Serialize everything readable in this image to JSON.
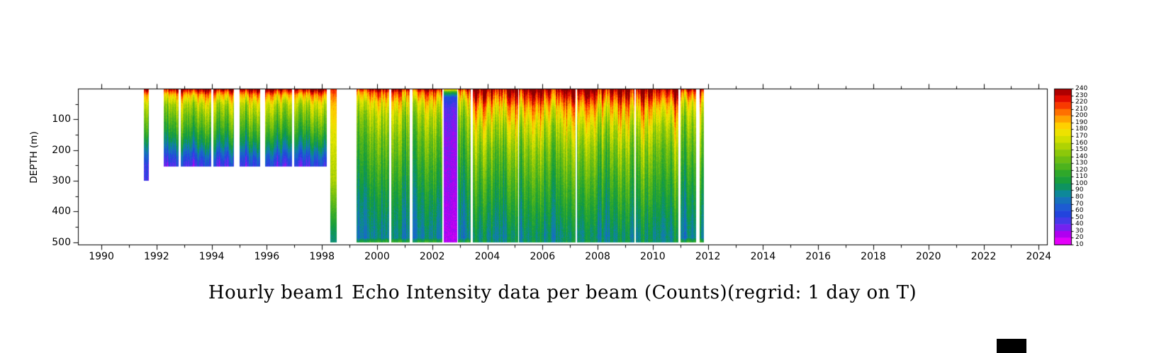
{
  "chart_data": {
    "type": "heatmap",
    "title": "Hourly beam1 Echo Intensity data per beam (Counts)(regrid: 1 day on T)",
    "xlabel": "",
    "ylabel": "DEPTH (m)",
    "xlim": [
      1989.15,
      2024.3
    ],
    "ylim": [
      0,
      508
    ],
    "x_major_ticks": [
      1990,
      1992,
      1994,
      1996,
      1998,
      2000,
      2002,
      2004,
      2006,
      2008,
      2010,
      2012,
      2014,
      2016,
      2018,
      2020,
      2022,
      2024
    ],
    "x_minor_step": 1,
    "y_major_ticks": [
      100,
      200,
      300,
      400,
      500
    ],
    "y_minor_step": 50,
    "grid": false,
    "legend_position": "right-colorbar",
    "colorbar": {
      "min": 10,
      "max": 240,
      "step": 10,
      "tick_labels": [
        240,
        230,
        220,
        210,
        200,
        190,
        180,
        170,
        160,
        150,
        140,
        130,
        120,
        110,
        100,
        90,
        80,
        70,
        60,
        50,
        40,
        30,
        20,
        10
      ]
    },
    "colormap_stops": [
      [
        10,
        "#ff00ff"
      ],
      [
        25,
        "#b000f0"
      ],
      [
        40,
        "#5533ee"
      ],
      [
        55,
        "#2244dd"
      ],
      [
        70,
        "#1a66cc"
      ],
      [
        85,
        "#0d8899"
      ],
      [
        100,
        "#0f9944"
      ],
      [
        115,
        "#2fa82a"
      ],
      [
        130,
        "#5cb817"
      ],
      [
        145,
        "#8cc80a"
      ],
      [
        160,
        "#c0d800"
      ],
      [
        172,
        "#e8e800"
      ],
      [
        185,
        "#ffd000"
      ],
      [
        198,
        "#ff9500"
      ],
      [
        210,
        "#ff5500"
      ],
      [
        222,
        "#ee1100"
      ],
      [
        232,
        "#c40000"
      ],
      [
        240,
        "#8b0000"
      ]
    ],
    "depth_profiles": {
      "early": [
        [
          0,
          240
        ],
        [
          6,
          228
        ],
        [
          20,
          195
        ],
        [
          50,
          162
        ],
        [
          90,
          142
        ],
        [
          140,
          118
        ],
        [
          185,
          92
        ],
        [
          225,
          62
        ],
        [
          252,
          48
        ],
        [
          300,
          46
        ]
      ],
      "transition": [
        [
          0,
          212
        ],
        [
          50,
          182
        ],
        [
          150,
          163
        ],
        [
          300,
          148
        ],
        [
          420,
          110
        ],
        [
          470,
          92
        ],
        [
          500,
          88
        ]
      ],
      "full": [
        [
          0,
          232
        ],
        [
          12,
          205
        ],
        [
          45,
          172
        ],
        [
          90,
          152
        ],
        [
          160,
          134
        ],
        [
          260,
          115
        ],
        [
          360,
          98
        ],
        [
          470,
          84
        ],
        [
          485,
          82
        ],
        [
          495,
          106
        ],
        [
          500,
          110
        ]
      ],
      "hot": [
        [
          0,
          240
        ],
        [
          18,
          222
        ],
        [
          60,
          188
        ],
        [
          120,
          162
        ],
        [
          200,
          140
        ],
        [
          300,
          120
        ],
        [
          400,
          103
        ],
        [
          480,
          90
        ],
        [
          500,
          95
        ]
      ],
      "purple": [
        [
          0,
          200
        ],
        [
          10,
          118
        ],
        [
          28,
          58
        ],
        [
          70,
          40
        ],
        [
          160,
          33
        ],
        [
          350,
          28
        ],
        [
          500,
          24
        ]
      ]
    },
    "noise_amplitude": {
      "early": 26,
      "transition": 14,
      "full": 30,
      "hot": 34,
      "purple": 8
    },
    "segments": [
      {
        "start": 1991.55,
        "end": 1991.7,
        "depth_max": 300,
        "style": "early"
      },
      {
        "start": 1992.25,
        "end": 1992.78,
        "depth_max": 252,
        "style": "early"
      },
      {
        "start": 1992.88,
        "end": 1993.95,
        "depth_max": 252,
        "style": "early"
      },
      {
        "start": 1994.05,
        "end": 1994.78,
        "depth_max": 252,
        "style": "early"
      },
      {
        "start": 1995.0,
        "end": 1995.72,
        "depth_max": 252,
        "style": "early"
      },
      {
        "start": 1995.95,
        "end": 1996.9,
        "depth_max": 252,
        "style": "early"
      },
      {
        "start": 1997.0,
        "end": 1998.15,
        "depth_max": 252,
        "style": "early"
      },
      {
        "start": 1998.3,
        "end": 1998.52,
        "depth_max": 500,
        "style": "transition"
      },
      {
        "start": 1999.25,
        "end": 2000.42,
        "depth_max": 500,
        "style": "full"
      },
      {
        "start": 2000.52,
        "end": 2001.15,
        "depth_max": 500,
        "style": "full"
      },
      {
        "start": 2001.28,
        "end": 2002.35,
        "depth_max": 500,
        "style": "full"
      },
      {
        "start": 2002.42,
        "end": 2002.88,
        "depth_max": 500,
        "style": "purple"
      },
      {
        "start": 2002.92,
        "end": 2003.38,
        "depth_max": 500,
        "style": "full"
      },
      {
        "start": 2003.48,
        "end": 2005.08,
        "depth_max": 500,
        "style": "hot"
      },
      {
        "start": 2005.15,
        "end": 2007.18,
        "depth_max": 500,
        "style": "hot"
      },
      {
        "start": 2007.25,
        "end": 2009.3,
        "depth_max": 500,
        "style": "hot"
      },
      {
        "start": 2009.38,
        "end": 2010.9,
        "depth_max": 500,
        "style": "hot"
      },
      {
        "start": 2011.0,
        "end": 2011.55,
        "depth_max": 500,
        "style": "full"
      },
      {
        "start": 2011.7,
        "end": 2011.83,
        "depth_max": 500,
        "style": "full"
      }
    ]
  }
}
